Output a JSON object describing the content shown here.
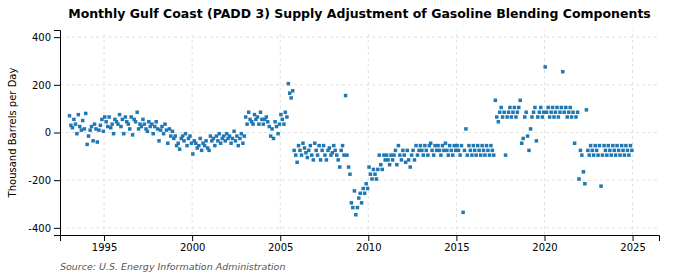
{
  "chart_data": {
    "type": "scatter",
    "title": "Monthly Gulf Coast (PADD 3) Supply Adjustment of Gasoline Blending Components",
    "y_label": "Thousand Barrels per Day",
    "source": "Source: U.S. Energy Information Administration",
    "xlim": [
      1992.5,
      2026.5
    ],
    "ylim": [
      -430,
      430
    ],
    "xticks": [
      1995,
      2000,
      2005,
      2010,
      2015,
      2020,
      2025
    ],
    "yticks": [
      -400,
      -200,
      0,
      200,
      400
    ],
    "grid": true,
    "marker": "square",
    "x": [
      1993.04,
      1993.12,
      1993.21,
      1993.29,
      1993.38,
      1993.46,
      1993.54,
      1993.62,
      1993.71,
      1993.79,
      1993.88,
      1993.96,
      1994.04,
      1994.12,
      1994.21,
      1994.29,
      1994.38,
      1994.46,
      1994.54,
      1994.62,
      1994.71,
      1994.79,
      1994.88,
      1994.96,
      1995.04,
      1995.12,
      1995.21,
      1995.29,
      1995.38,
      1995.46,
      1995.54,
      1995.62,
      1995.71,
      1995.79,
      1995.88,
      1995.96,
      1996.04,
      1996.12,
      1996.21,
      1996.29,
      1996.38,
      1996.46,
      1996.54,
      1996.62,
      1996.71,
      1996.79,
      1996.88,
      1996.96,
      1997.04,
      1997.12,
      1997.21,
      1997.29,
      1997.38,
      1997.46,
      1997.54,
      1997.62,
      1997.71,
      1997.79,
      1997.88,
      1997.96,
      1998.04,
      1998.12,
      1998.21,
      1998.29,
      1998.38,
      1998.46,
      1998.54,
      1998.62,
      1998.71,
      1998.79,
      1998.88,
      1998.96,
      1999.04,
      1999.12,
      1999.21,
      1999.29,
      1999.38,
      1999.46,
      1999.54,
      1999.62,
      1999.71,
      1999.79,
      1999.88,
      1999.96,
      2000.04,
      2000.12,
      2000.21,
      2000.29,
      2000.38,
      2000.46,
      2000.54,
      2000.62,
      2000.71,
      2000.79,
      2000.88,
      2000.96,
      2001.04,
      2001.12,
      2001.21,
      2001.29,
      2001.38,
      2001.46,
      2001.54,
      2001.62,
      2001.71,
      2001.79,
      2001.88,
      2001.96,
      2002.04,
      2002.12,
      2002.21,
      2002.29,
      2002.38,
      2002.46,
      2002.54,
      2002.62,
      2002.71,
      2002.79,
      2002.88,
      2002.96,
      2003.04,
      2003.12,
      2003.21,
      2003.29,
      2003.38,
      2003.46,
      2003.54,
      2003.62,
      2003.71,
      2003.79,
      2003.88,
      2003.96,
      2004.04,
      2004.12,
      2004.21,
      2004.29,
      2004.38,
      2004.46,
      2004.54,
      2004.62,
      2004.71,
      2004.79,
      2004.88,
      2004.96,
      2005.04,
      2005.12,
      2005.21,
      2005.29,
      2005.38,
      2005.46,
      2005.54,
      2005.62,
      2005.71,
      2005.79,
      2005.88,
      2005.96,
      2006.04,
      2006.12,
      2006.21,
      2006.29,
      2006.38,
      2006.46,
      2006.54,
      2006.62,
      2006.71,
      2006.79,
      2006.88,
      2006.96,
      2007.04,
      2007.12,
      2007.21,
      2007.29,
      2007.38,
      2007.46,
      2007.54,
      2007.62,
      2007.71,
      2007.79,
      2007.88,
      2007.96,
      2008.04,
      2008.12,
      2008.21,
      2008.29,
      2008.38,
      2008.46,
      2008.54,
      2008.62,
      2008.71,
      2008.79,
      2008.88,
      2008.96,
      2009.04,
      2009.12,
      2009.21,
      2009.29,
      2009.38,
      2009.46,
      2009.54,
      2009.62,
      2009.71,
      2009.79,
      2009.88,
      2009.96,
      2010.04,
      2010.12,
      2010.21,
      2010.29,
      2010.38,
      2010.46,
      2010.54,
      2010.62,
      2010.71,
      2010.79,
      2010.88,
      2010.96,
      2011.04,
      2011.12,
      2011.21,
      2011.29,
      2011.38,
      2011.46,
      2011.54,
      2011.62,
      2011.71,
      2011.79,
      2011.88,
      2011.96,
      2012.04,
      2012.12,
      2012.21,
      2012.29,
      2012.38,
      2012.46,
      2012.54,
      2012.62,
      2012.71,
      2012.79,
      2012.88,
      2012.96,
      2013.04,
      2013.12,
      2013.21,
      2013.29,
      2013.38,
      2013.46,
      2013.54,
      2013.62,
      2013.71,
      2013.79,
      2013.88,
      2013.96,
      2014.04,
      2014.12,
      2014.21,
      2014.29,
      2014.38,
      2014.46,
      2014.54,
      2014.62,
      2014.71,
      2014.79,
      2014.88,
      2014.96,
      2015.04,
      2015.12,
      2015.21,
      2015.29,
      2015.38,
      2015.46,
      2015.54,
      2015.62,
      2015.71,
      2015.79,
      2015.88,
      2015.96,
      2016.04,
      2016.12,
      2016.21,
      2016.29,
      2016.38,
      2016.46,
      2016.54,
      2016.62,
      2016.71,
      2016.79,
      2016.88,
      2016.96,
      2017.04,
      2017.12,
      2017.21,
      2017.29,
      2017.38,
      2017.46,
      2017.54,
      2017.62,
      2017.71,
      2017.79,
      2017.88,
      2017.96,
      2018.04,
      2018.12,
      2018.21,
      2018.29,
      2018.38,
      2018.46,
      2018.54,
      2018.62,
      2018.71,
      2018.79,
      2018.88,
      2018.96,
      2019.04,
      2019.12,
      2019.21,
      2019.29,
      2019.38,
      2019.46,
      2019.54,
      2019.62,
      2019.71,
      2019.79,
      2019.88,
      2019.96,
      2020.04,
      2020.12,
      2020.21,
      2020.29,
      2020.38,
      2020.46,
      2020.54,
      2020.62,
      2020.71,
      2020.79,
      2020.88,
      2020.96,
      2021.04,
      2021.12,
      2021.21,
      2021.29,
      2021.38,
      2021.46,
      2021.54,
      2021.62,
      2021.71,
      2021.79,
      2021.88,
      2021.96,
      2022.04,
      2022.12,
      2022.21,
      2022.29,
      2022.38,
      2022.46,
      2022.54,
      2022.62,
      2022.71,
      2022.79,
      2022.88,
      2022.96,
      2023.04,
      2023.12,
      2023.21,
      2023.29,
      2023.38,
      2023.46,
      2023.54,
      2023.62,
      2023.71,
      2023.79,
      2023.88,
      2023.96,
      2024.04,
      2024.12,
      2024.21,
      2024.29,
      2024.38,
      2024.46,
      2024.54,
      2024.62,
      2024.71,
      2024.79,
      2024.88,
      2024.96
    ],
    "values": [
      70,
      30,
      20,
      55,
      35,
      -5,
      75,
      25,
      10,
      50,
      15,
      80,
      -50,
      -15,
      10,
      25,
      -35,
      35,
      15,
      -40,
      10,
      30,
      55,
      5,
      65,
      45,
      25,
      65,
      20,
      35,
      -5,
      55,
      45,
      35,
      75,
      25,
      55,
      -5,
      65,
      45,
      35,
      15,
      65,
      -10,
      55,
      45,
      85,
      15,
      35,
      25,
      55,
      35,
      15,
      5,
      45,
      25,
      35,
      -5,
      25,
      45,
      15,
      -35,
      10,
      25,
      -5,
      35,
      10,
      -45,
      15,
      -15,
      5,
      -25,
      -15,
      -55,
      -45,
      -70,
      -25,
      -15,
      -35,
      -5,
      -55,
      -25,
      -15,
      -45,
      -90,
      -35,
      -45,
      -65,
      -55,
      -25,
      -75,
      -45,
      -55,
      -35,
      -65,
      -75,
      -15,
      -35,
      -25,
      -55,
      -15,
      -35,
      -5,
      -45,
      -25,
      -15,
      -35,
      -5,
      -25,
      -15,
      -45,
      -25,
      5,
      -35,
      -15,
      -55,
      -25,
      -5,
      -45,
      -15,
      65,
      35,
      85,
      55,
      45,
      35,
      75,
      55,
      65,
      35,
      85,
      55,
      35,
      55,
      65,
      45,
      25,
      -15,
      15,
      -25,
      45,
      25,
      -5,
      35,
      75,
      55,
      35,
      85,
      65,
      205,
      165,
      145,
      175,
      -75,
      -95,
      -125,
      -55,
      -75,
      -95,
      -45,
      -65,
      -85,
      -105,
      -75,
      -55,
      -95,
      -115,
      -45,
      -75,
      -95,
      -55,
      -115,
      -75,
      -55,
      -95,
      -115,
      -75,
      -65,
      -95,
      -85,
      -55,
      -75,
      -95,
      -115,
      -145,
      -75,
      -55,
      -95,
      155,
      -95,
      -145,
      -175,
      -295,
      -315,
      -245,
      -345,
      -315,
      -275,
      -255,
      -295,
      -235,
      -255,
      -215,
      -235,
      -145,
      -175,
      -195,
      -155,
      -175,
      -195,
      -155,
      -95,
      -135,
      -155,
      -95,
      -115,
      -95,
      -115,
      -135,
      -95,
      -115,
      -95,
      -75,
      -135,
      -55,
      -95,
      -115,
      -75,
      -95,
      -125,
      -75,
      -115,
      -145,
      -95,
      -75,
      -115,
      -55,
      -95,
      -75,
      -55,
      -75,
      -95,
      -55,
      -75,
      -95,
      -55,
      -45,
      -75,
      -95,
      -55,
      -75,
      -55,
      -75,
      -95,
      -55,
      -75,
      -45,
      -75,
      -95,
      -55,
      -75,
      -95,
      -55,
      -75,
      -55,
      -75,
      -95,
      -55,
      -335,
      -75,
      15,
      -95,
      -55,
      -75,
      -95,
      -55,
      -75,
      -95,
      -55,
      -75,
      -95,
      -55,
      -75,
      -95,
      -55,
      -75,
      -95,
      -55,
      -75,
      -95,
      135,
      65,
      45,
      85,
      105,
      65,
      85,
      -95,
      65,
      85,
      105,
      65,
      85,
      105,
      65,
      85,
      105,
      135,
      -45,
      -25,
      65,
      85,
      -15,
      -75,
      15,
      65,
      85,
      105,
      -35,
      65,
      85,
      105,
      65,
      85,
      275,
      85,
      105,
      65,
      85,
      105,
      65,
      85,
      105,
      65,
      85,
      105,
      255,
      85,
      105,
      65,
      85,
      105,
      65,
      85,
      -45,
      65,
      85,
      -195,
      -75,
      -95,
      -165,
      -215,
      95,
      -75,
      -95,
      -55,
      -75,
      -95,
      -55,
      -75,
      -95,
      -55,
      -225,
      -95,
      -55,
      -75,
      -95,
      -55,
      -75,
      -95,
      -55,
      -75,
      -95,
      -55,
      -75,
      -95,
      -55,
      -75,
      -95,
      -55,
      -75,
      -95,
      -55,
      -75
    ]
  }
}
